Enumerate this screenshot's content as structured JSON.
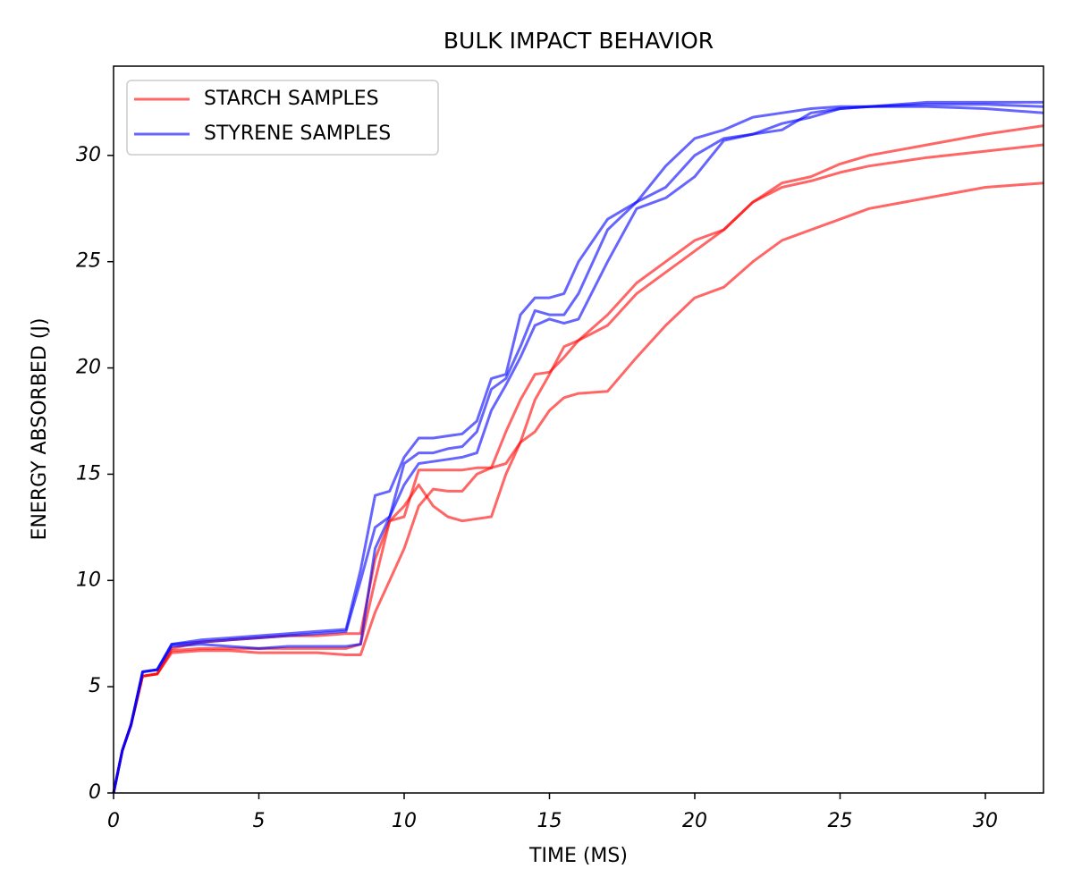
{
  "chart_data": {
    "type": "line",
    "title": "BULK IMPACT BEHAVIOR",
    "x_label": "TIME (MS)",
    "y_label": "ENERGY ABSORBED (J)",
    "x": [
      0,
      0.3,
      0.6,
      1,
      1.5,
      2,
      3,
      4,
      5,
      6,
      7,
      8,
      8.5,
      9,
      9.5,
      10,
      10.5,
      11,
      11.5,
      12,
      12.5,
      13,
      13.5,
      14,
      14.5,
      15,
      15.5,
      16,
      17,
      18,
      19,
      20,
      21,
      22,
      23,
      24,
      25,
      26,
      28,
      30,
      32
    ],
    "series": [
      {
        "name": "STARCH SAMPLES",
        "color": "#ff0000",
        "alpha": 0.6,
        "runs": [
          [
            0,
            2,
            3.2,
            5.5,
            5.6,
            6.8,
            7.1,
            7.2,
            7.3,
            7.4,
            7.4,
            7.5,
            7.5,
            11,
            12.8,
            13,
            15.2,
            15.2,
            15.2,
            15.2,
            15.3,
            15.3,
            17,
            18.5,
            19.7,
            19.8,
            20.5,
            21.3,
            22.5,
            24,
            25,
            26,
            26.5,
            27.8,
            28.7,
            29,
            29.6,
            30,
            30.5,
            31,
            31.4
          ],
          [
            0,
            2,
            3.2,
            5.5,
            5.6,
            6.7,
            6.8,
            6.8,
            6.8,
            6.8,
            6.8,
            6.8,
            7,
            10,
            12.8,
            13.5,
            14.5,
            13.5,
            13,
            12.8,
            12.9,
            13,
            15,
            16.5,
            18.5,
            19.7,
            21,
            21.3,
            22,
            23.5,
            24.5,
            25.5,
            26.5,
            27.8,
            28.5,
            28.8,
            29.2,
            29.5,
            29.9,
            30.2,
            30.5
          ],
          [
            0,
            2,
            3.2,
            5.5,
            5.6,
            6.6,
            6.7,
            6.7,
            6.6,
            6.6,
            6.6,
            6.5,
            6.5,
            8.5,
            10,
            11.5,
            13.5,
            14.3,
            14.2,
            14.2,
            15,
            15.3,
            15.5,
            16.5,
            17,
            18,
            18.6,
            18.8,
            18.9,
            20.5,
            22,
            23.3,
            23.8,
            25,
            26,
            26.5,
            27,
            27.5,
            28,
            28.5,
            28.7
          ]
        ]
      },
      {
        "name": "STYRENE SAMPLES",
        "color": "#0000ff",
        "alpha": 0.6,
        "runs": [
          [
            0,
            2,
            3.2,
            5.7,
            5.8,
            7,
            7.2,
            7.3,
            7.4,
            7.5,
            7.6,
            7.7,
            10.5,
            14,
            14.2,
            15.8,
            16.7,
            16.7,
            16.8,
            16.9,
            17.5,
            19.5,
            19.7,
            22.5,
            23.3,
            23.3,
            23.5,
            25,
            27,
            27.8,
            29.5,
            30.8,
            31.2,
            31.8,
            32,
            32.2,
            32.3,
            32.3,
            32.5,
            32.5,
            32.5
          ],
          [
            0,
            2,
            3.2,
            5.7,
            5.8,
            7,
            7.1,
            7.2,
            7.3,
            7.4,
            7.5,
            7.6,
            10,
            12.5,
            13,
            15.5,
            16,
            16,
            16.2,
            16.3,
            17,
            19,
            19.5,
            21,
            22.7,
            22.5,
            22.5,
            23.5,
            26.5,
            27.8,
            28.5,
            30,
            30.8,
            31,
            31.5,
            31.8,
            32.2,
            32.3,
            32.3,
            32.2,
            32
          ],
          [
            0,
            2,
            3.2,
            5.7,
            5.8,
            6.9,
            7,
            6.9,
            6.8,
            6.9,
            6.9,
            6.9,
            7,
            11.5,
            13,
            14.5,
            15.5,
            15.6,
            15.7,
            15.8,
            16,
            18,
            19.2,
            20.5,
            22,
            22.3,
            22.1,
            22.3,
            25,
            27.5,
            28,
            29,
            30.7,
            31,
            31.2,
            32,
            32.2,
            32.3,
            32.4,
            32.4,
            32.3
          ]
        ]
      }
    ],
    "xlim": [
      0,
      32
    ],
    "xticks": [
      0,
      5,
      10,
      15,
      20,
      25,
      30
    ],
    "ylim": [
      0,
      34.2
    ],
    "yticks": [
      0,
      5,
      10,
      15,
      20,
      25,
      30
    ],
    "grid": false,
    "legend": "upper left"
  }
}
